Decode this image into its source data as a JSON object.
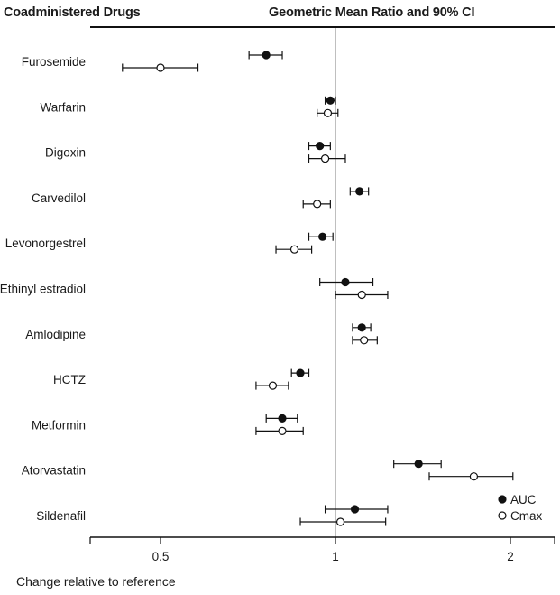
{
  "header": {
    "left_title": "Coadministered Drugs",
    "right_title": "Geometric Mean Ratio and 90% CI"
  },
  "chart_data": {
    "type": "scatter",
    "scale": "log",
    "xlabel": "Change relative to reference",
    "xlim": [
      0.38,
      2.5
    ],
    "xticks": [
      {
        "value": 0.5,
        "label": "0.5"
      },
      {
        "value": 1,
        "label": "1"
      },
      {
        "value": 2,
        "label": "2"
      }
    ],
    "reference_line": 1,
    "legend": {
      "position": "bottom-right",
      "entries": [
        {
          "name": "AUC",
          "marker": "filled-circle"
        },
        {
          "name": "Cmax",
          "marker": "open-circle"
        }
      ]
    },
    "colors": {
      "line": "#111111",
      "reference": "#aaaaaa",
      "open_fill": "#ffffff"
    },
    "categories": [
      {
        "drug": "Furosemide",
        "auc": {
          "mean": 0.76,
          "lo": 0.71,
          "hi": 0.81
        },
        "cmax": {
          "mean": 0.5,
          "lo": 0.43,
          "hi": 0.58
        }
      },
      {
        "drug": "Warfarin",
        "auc": {
          "mean": 0.98,
          "lo": 0.96,
          "hi": 1.0
        },
        "cmax": {
          "mean": 0.97,
          "lo": 0.93,
          "hi": 1.01
        }
      },
      {
        "drug": "Digoxin",
        "auc": {
          "mean": 0.94,
          "lo": 0.9,
          "hi": 0.98
        },
        "cmax": {
          "mean": 0.96,
          "lo": 0.9,
          "hi": 1.04
        }
      },
      {
        "drug": "Carvedilol",
        "auc": {
          "mean": 1.1,
          "lo": 1.06,
          "hi": 1.14
        },
        "cmax": {
          "mean": 0.93,
          "lo": 0.88,
          "hi": 0.98
        }
      },
      {
        "drug": "Levonorgestrel",
        "auc": {
          "mean": 0.95,
          "lo": 0.9,
          "hi": 0.99
        },
        "cmax": {
          "mean": 0.85,
          "lo": 0.79,
          "hi": 0.91
        }
      },
      {
        "drug": "Ethinyl estradiol",
        "auc": {
          "mean": 1.04,
          "lo": 0.94,
          "hi": 1.16
        },
        "cmax": {
          "mean": 1.11,
          "lo": 1.0,
          "hi": 1.23
        }
      },
      {
        "drug": "Amlodipine",
        "auc": {
          "mean": 1.11,
          "lo": 1.07,
          "hi": 1.15
        },
        "cmax": {
          "mean": 1.12,
          "lo": 1.07,
          "hi": 1.18
        }
      },
      {
        "drug": "HCTZ",
        "auc": {
          "mean": 0.87,
          "lo": 0.84,
          "hi": 0.9
        },
        "cmax": {
          "mean": 0.78,
          "lo": 0.73,
          "hi": 0.83
        }
      },
      {
        "drug": "Metformin",
        "auc": {
          "mean": 0.81,
          "lo": 0.76,
          "hi": 0.86
        },
        "cmax": {
          "mean": 0.81,
          "lo": 0.73,
          "hi": 0.88
        }
      },
      {
        "drug": "Atorvastatin",
        "auc": {
          "mean": 1.39,
          "lo": 1.26,
          "hi": 1.52
        },
        "cmax": {
          "mean": 1.73,
          "lo": 1.45,
          "hi": 2.02
        }
      },
      {
        "drug": "Sildenafil",
        "auc": {
          "mean": 1.08,
          "lo": 0.96,
          "hi": 1.23
        },
        "cmax": {
          "mean": 1.02,
          "lo": 0.87,
          "hi": 1.22
        }
      }
    ]
  }
}
